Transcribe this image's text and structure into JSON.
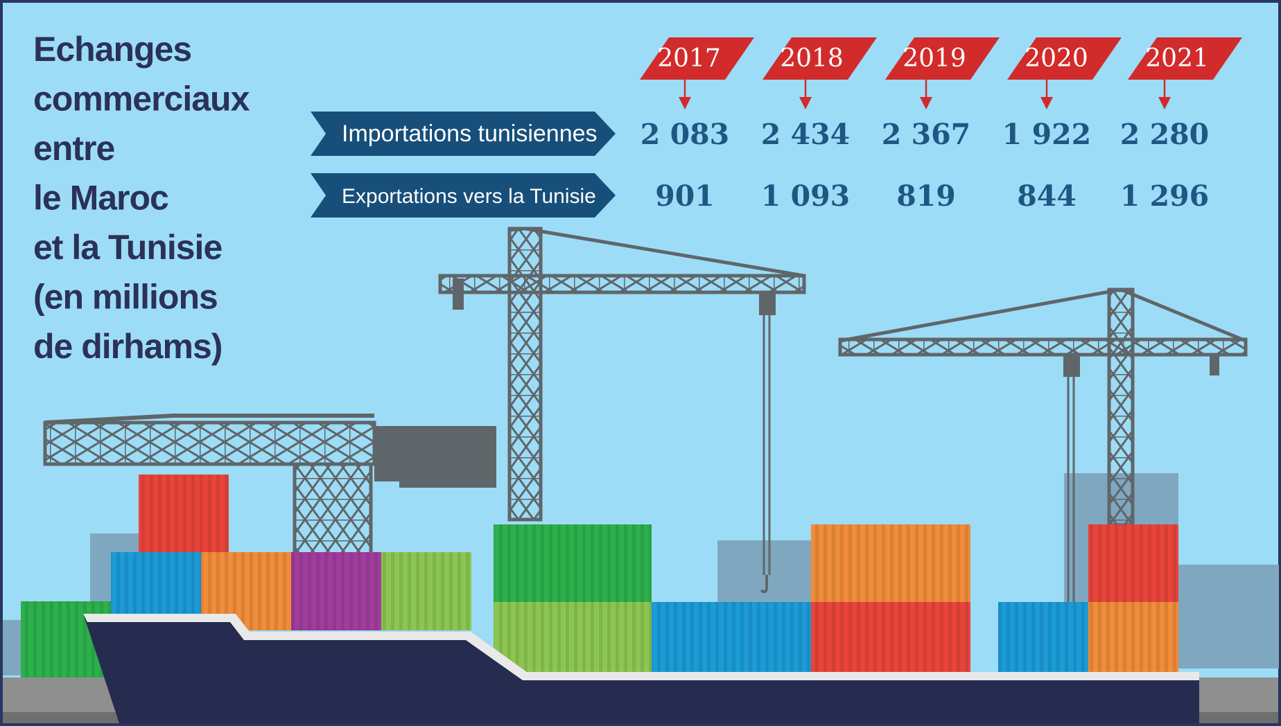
{
  "title_lines": [
    "Echanges",
    "commerciaux",
    "entre",
    "le Maroc",
    "et la Tunisie",
    "(en millions",
    "de dirhams)"
  ],
  "chart_data": {
    "type": "table",
    "title": "Echanges commerciaux entre le Maroc et la Tunisie (en millions de dirhams)",
    "categories": [
      "2017",
      "2018",
      "2019",
      "2020",
      "2021"
    ],
    "series": [
      {
        "name": "Importations tunisiennes",
        "values": [
          2083,
          2434,
          2367,
          1922,
          2280
        ],
        "labels": [
          "2 083",
          "2 434",
          "2 367",
          "1 922",
          "2 280"
        ]
      },
      {
        "name": "Exportations vers la Tunisie",
        "values": [
          901,
          1093,
          819,
          844,
          1296
        ],
        "labels": [
          "901",
          "1 093",
          "819",
          "844",
          "1 296"
        ]
      }
    ]
  },
  "colors": {
    "sky": "#9ddcf7",
    "frame": "#2a3560",
    "year_tag": "#d22b2b",
    "label_banner": "#174f7a",
    "value_text": "#1f5682",
    "title_text": "#2b3157",
    "crane": "#5f6669",
    "hull": "#252c4f",
    "deck_stripe": "#e9e9e9",
    "dock": "#8f8f8f",
    "building": "#7fa8c0",
    "container_red": "#e8443a",
    "container_blue": "#1c9bd6",
    "container_orange": "#f08c3a",
    "container_purple": "#a03d9c",
    "container_lightgreen": "#8cc652",
    "container_green": "#2cb04c"
  },
  "illustration": {
    "crane_icon": "tower-crane-icon",
    "ship_icon": "cargo-ship-icon",
    "container_icon": "shipping-container-icon"
  }
}
